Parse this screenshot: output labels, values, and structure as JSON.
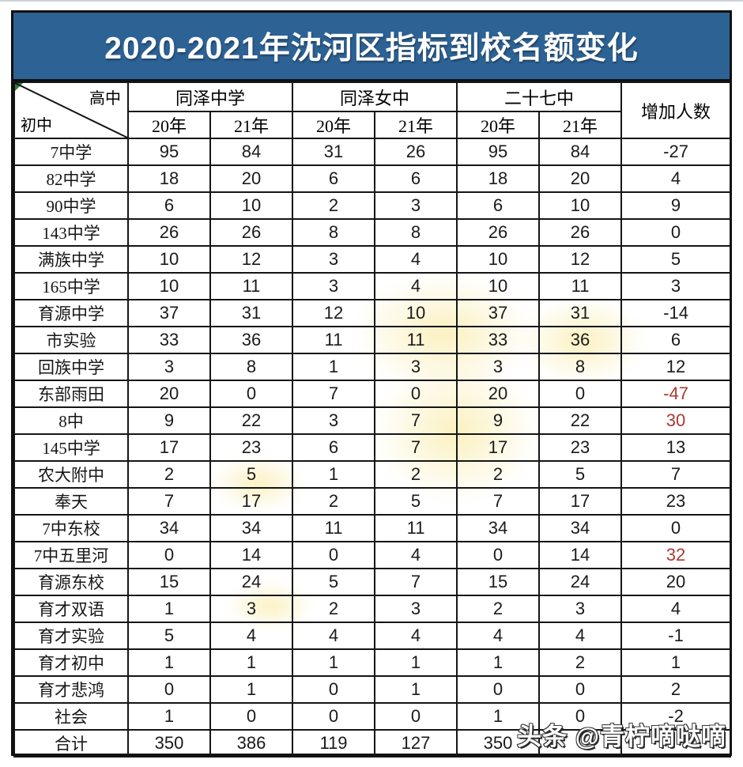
{
  "title": "2020-2021年沈河区指标到校名额变化",
  "header": {
    "corner_top": "高中",
    "corner_bottom": "初中",
    "groups": [
      "同泽中学",
      "同泽女中",
      "二十七中"
    ],
    "year_labels": [
      "20年",
      "21年"
    ],
    "change_label": "增加人数"
  },
  "colors": {
    "banner_blue": "#2d6295",
    "negative_red": "#a93b33",
    "corner_green": "#2f7d32",
    "border_black": "#151515"
  },
  "watermark": {
    "text": "头条 @青柠嘀哒嘀"
  },
  "rows": [
    {
      "school": "7中学",
      "values": [
        "95",
        "84",
        "31",
        "26",
        "95",
        "84"
      ],
      "change": "-27",
      "red": false
    },
    {
      "school": "82中学",
      "values": [
        "18",
        "20",
        "6",
        "6",
        "18",
        "20"
      ],
      "change": "4",
      "red": false
    },
    {
      "school": "90中学",
      "values": [
        "6",
        "10",
        "2",
        "3",
        "6",
        "10"
      ],
      "change": "9",
      "red": false
    },
    {
      "school": "143中学",
      "values": [
        "26",
        "26",
        "8",
        "8",
        "26",
        "26"
      ],
      "change": "0",
      "red": false
    },
    {
      "school": "满族中学",
      "values": [
        "10",
        "12",
        "3",
        "4",
        "10",
        "12"
      ],
      "change": "5",
      "red": false
    },
    {
      "school": "165中学",
      "values": [
        "10",
        "11",
        "3",
        "4",
        "10",
        "11"
      ],
      "change": "3",
      "red": false
    },
    {
      "school": "育源中学",
      "values": [
        "37",
        "31",
        "12",
        "10",
        "37",
        "31"
      ],
      "change": "-14",
      "red": false
    },
    {
      "school": "市实验",
      "values": [
        "33",
        "36",
        "11",
        "11",
        "33",
        "36"
      ],
      "change": "6",
      "red": false
    },
    {
      "school": "回族中学",
      "values": [
        "3",
        "8",
        "1",
        "3",
        "3",
        "8"
      ],
      "change": "12",
      "red": false
    },
    {
      "school": "东部雨田",
      "values": [
        "20",
        "0",
        "7",
        "0",
        "20",
        "0"
      ],
      "change": "-47",
      "red": true
    },
    {
      "school": "8中",
      "values": [
        "9",
        "22",
        "3",
        "7",
        "9",
        "22"
      ],
      "change": "30",
      "red": true
    },
    {
      "school": "145中学",
      "values": [
        "17",
        "23",
        "6",
        "7",
        "17",
        "23"
      ],
      "change": "13",
      "red": false
    },
    {
      "school": "农大附中",
      "values": [
        "2",
        "5",
        "1",
        "2",
        "2",
        "5"
      ],
      "change": "7",
      "red": false
    },
    {
      "school": "奉天",
      "values": [
        "7",
        "17",
        "2",
        "5",
        "7",
        "17"
      ],
      "change": "23",
      "red": false
    },
    {
      "school": "7中东校",
      "values": [
        "34",
        "34",
        "11",
        "11",
        "34",
        "34"
      ],
      "change": "0",
      "red": false
    },
    {
      "school": "7中五里河",
      "values": [
        "0",
        "14",
        "0",
        "4",
        "0",
        "14"
      ],
      "change": "32",
      "red": true
    },
    {
      "school": "育源东校",
      "values": [
        "15",
        "24",
        "5",
        "7",
        "15",
        "24"
      ],
      "change": "20",
      "red": false
    },
    {
      "school": "育才双语",
      "values": [
        "1",
        "3",
        "2",
        "3",
        "2",
        "3"
      ],
      "change": "4",
      "red": false
    },
    {
      "school": "育才实验",
      "values": [
        "5",
        "4",
        "4",
        "4",
        "4",
        "4"
      ],
      "change": "-1",
      "red": false
    },
    {
      "school": "育才初中",
      "values": [
        "1",
        "1",
        "1",
        "1",
        "1",
        "2"
      ],
      "change": "1",
      "red": false
    },
    {
      "school": "育才悲鸿",
      "values": [
        "0",
        "1",
        "0",
        "1",
        "0",
        "0"
      ],
      "change": "2",
      "red": false
    },
    {
      "school": "社会",
      "values": [
        "1",
        "0",
        "0",
        "0",
        "1",
        "0"
      ],
      "change": "-2",
      "red": false
    },
    {
      "school": "合计",
      "values": [
        "350",
        "386",
        "119",
        "127",
        "350",
        ""
      ],
      "change": "",
      "red": false
    }
  ]
}
